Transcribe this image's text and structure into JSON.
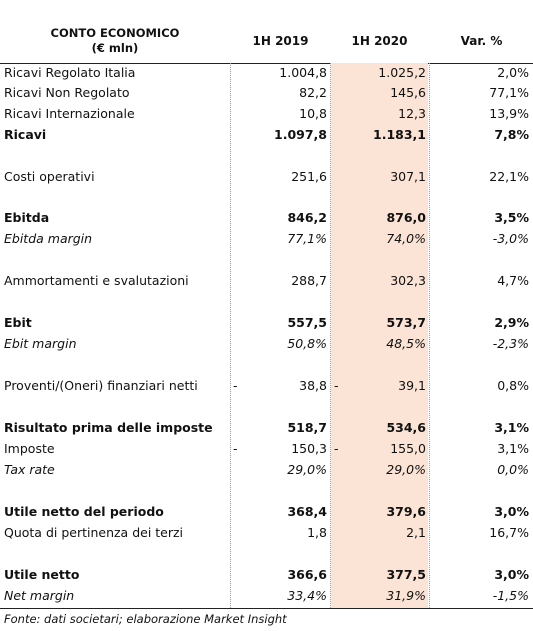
{
  "header": {
    "label_line1": "CONTO ECONOMICO",
    "label_line2": "(€ mln)",
    "col_2019": "1H 2019",
    "col_2020": "1H 2020",
    "col_var": "Var. %"
  },
  "rows": [
    {
      "label": "Ricavi Regolato Italia",
      "v2019": "1.004,8",
      "v2020": "1.025,2",
      "var": "2,0%",
      "style": "normal"
    },
    {
      "label": "Ricavi Non Regolato",
      "v2019": "82,2",
      "v2020": "145,6",
      "var": "77,1%",
      "style": "normal"
    },
    {
      "label": "Ricavi Internazionale",
      "v2019": "10,8",
      "v2020": "12,3",
      "var": "13,9%",
      "style": "normal"
    },
    {
      "label": "Ricavi",
      "v2019": "1.097,8",
      "v2020": "1.183,1",
      "var": "7,8%",
      "style": "bold"
    },
    {
      "label": "Costi operativi",
      "v2019": "251,6",
      "v2020": "307,1",
      "var": "22,1%",
      "style": "normal"
    },
    {
      "label": "Ebitda",
      "v2019": "846,2",
      "v2020": "876,0",
      "var": "3,5%",
      "style": "bold"
    },
    {
      "label": "Ebitda margin",
      "v2019": "77,1%",
      "v2020": "74,0%",
      "var": "-3,0%",
      "style": "italic"
    },
    {
      "label": "Ammortamenti e svalutazioni",
      "v2019": "288,7",
      "v2020": "302,3",
      "var": "4,7%",
      "style": "normal"
    },
    {
      "label": "Ebit",
      "v2019": "557,5",
      "v2020": "573,7",
      "var": "2,9%",
      "style": "bold"
    },
    {
      "label": "Ebit margin",
      "v2019": "50,8%",
      "v2020": "48,5%",
      "var": "-2,3%",
      "style": "italic"
    },
    {
      "label": "Proventi/(Oneri) finanziari netti",
      "neg2019": "-",
      "v2019": "38,8",
      "neg2020": "-",
      "v2020": "39,1",
      "var": "0,8%",
      "style": "normal"
    },
    {
      "label": "Risultato prima delle imposte",
      "v2019": "518,7",
      "v2020": "534,6",
      "var": "3,1%",
      "style": "bold"
    },
    {
      "label": "Imposte",
      "neg2019": "-",
      "v2019": "150,3",
      "neg2020": "-",
      "v2020": "155,0",
      "var": "3,1%",
      "style": "normal"
    },
    {
      "label": "Tax rate",
      "v2019": "29,0%",
      "v2020": "29,0%",
      "var": "0,0%",
      "style": "italic"
    },
    {
      "label": "Utile netto del periodo",
      "v2019": "368,4",
      "v2020": "379,6",
      "var": "3,0%",
      "style": "bold"
    },
    {
      "label": "Quota di pertinenza dei terzi",
      "v2019": "1,8",
      "v2020": "2,1",
      "var": "16,7%",
      "style": "normal"
    },
    {
      "label": "Utile netto",
      "v2019": "366,6",
      "v2020": "377,5",
      "var": "3,0%",
      "style": "bold"
    },
    {
      "label": "Net margin",
      "v2019": "33,4%",
      "v2020": "31,9%",
      "var": "-1,5%",
      "style": "italic"
    }
  ],
  "footer": {
    "source": "Fonte: dati societari; elaborazione Market Insight"
  },
  "colors": {
    "highlight_column": "#fbe4d5",
    "rule": "#222222"
  }
}
